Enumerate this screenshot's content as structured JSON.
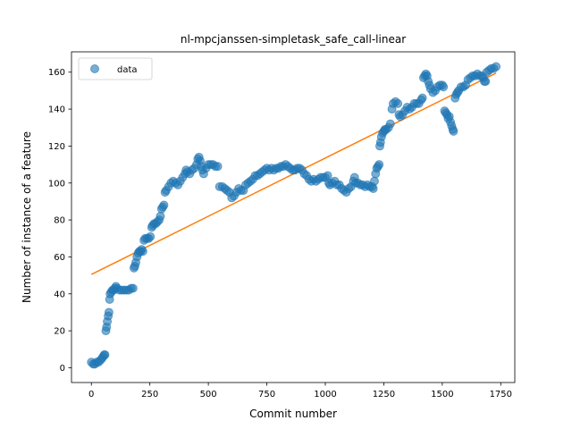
{
  "chart_data": {
    "type": "scatter",
    "title": "nl-mpcjanssen-simpletask_safe_call-linear",
    "xlabel": "Commit number",
    "ylabel": "Number of instance of a feature",
    "xlim": [
      -85,
      1810
    ],
    "ylim": [
      -8,
      171
    ],
    "xticks": [
      0,
      250,
      500,
      750,
      1000,
      1250,
      1500,
      1750
    ],
    "yticks": [
      0,
      20,
      40,
      60,
      80,
      100,
      120,
      140,
      160
    ],
    "grid": false,
    "legend_position": "upper-left",
    "colors": {
      "data": "#1f77b4",
      "fit": "#ff7f0e"
    },
    "series": [
      {
        "name": "data",
        "kind": "scatter",
        "points": [
          [
            0,
            3
          ],
          [
            8,
            2
          ],
          [
            15,
            2
          ],
          [
            22,
            3
          ],
          [
            30,
            3
          ],
          [
            38,
            4
          ],
          [
            45,
            5
          ],
          [
            50,
            6
          ],
          [
            55,
            7
          ],
          [
            58,
            7
          ],
          [
            62,
            20
          ],
          [
            65,
            22
          ],
          [
            68,
            25
          ],
          [
            72,
            28
          ],
          [
            75,
            30
          ],
          [
            78,
            37
          ],
          [
            80,
            40
          ],
          [
            85,
            41
          ],
          [
            90,
            42
          ],
          [
            95,
            42
          ],
          [
            100,
            43
          ],
          [
            105,
            44
          ],
          [
            110,
            43
          ],
          [
            120,
            42
          ],
          [
            130,
            42
          ],
          [
            140,
            42
          ],
          [
            150,
            42
          ],
          [
            160,
            42
          ],
          [
            170,
            43
          ],
          [
            178,
            43
          ],
          [
            182,
            54
          ],
          [
            186,
            55
          ],
          [
            190,
            57
          ],
          [
            195,
            60
          ],
          [
            200,
            62
          ],
          [
            205,
            63
          ],
          [
            210,
            63
          ],
          [
            215,
            64
          ],
          [
            220,
            63
          ],
          [
            225,
            69
          ],
          [
            230,
            70
          ],
          [
            238,
            70
          ],
          [
            245,
            70
          ],
          [
            252,
            71
          ],
          [
            258,
            76
          ],
          [
            262,
            77
          ],
          [
            268,
            78
          ],
          [
            275,
            78
          ],
          [
            282,
            79
          ],
          [
            290,
            80
          ],
          [
            295,
            82
          ],
          [
            300,
            86
          ],
          [
            305,
            87
          ],
          [
            310,
            88
          ],
          [
            315,
            95
          ],
          [
            320,
            96
          ],
          [
            330,
            98
          ],
          [
            340,
            100
          ],
          [
            350,
            101
          ],
          [
            360,
            100
          ],
          [
            370,
            99
          ],
          [
            380,
            101
          ],
          [
            390,
            103
          ],
          [
            400,
            105
          ],
          [
            405,
            107
          ],
          [
            410,
            106
          ],
          [
            420,
            105
          ],
          [
            430,
            107
          ],
          [
            440,
            108
          ],
          [
            450,
            110
          ],
          [
            455,
            113
          ],
          [
            460,
            114
          ],
          [
            465,
            112
          ],
          [
            470,
            109
          ],
          [
            475,
            107
          ],
          [
            480,
            105
          ],
          [
            490,
            108
          ],
          [
            500,
            110
          ],
          [
            510,
            110
          ],
          [
            520,
            110
          ],
          [
            530,
            109
          ],
          [
            540,
            109
          ],
          [
            548,
            98
          ],
          [
            560,
            98
          ],
          [
            570,
            97
          ],
          [
            580,
            96
          ],
          [
            590,
            95
          ],
          [
            600,
            92
          ],
          [
            610,
            93
          ],
          [
            620,
            95
          ],
          [
            630,
            97
          ],
          [
            640,
            96
          ],
          [
            650,
            96
          ],
          [
            660,
            99
          ],
          [
            670,
            100
          ],
          [
            680,
            101
          ],
          [
            690,
            102
          ],
          [
            700,
            104
          ],
          [
            710,
            104
          ],
          [
            720,
            105
          ],
          [
            730,
            106
          ],
          [
            740,
            107
          ],
          [
            750,
            108
          ],
          [
            760,
            107
          ],
          [
            770,
            108
          ],
          [
            780,
            107
          ],
          [
            790,
            108
          ],
          [
            800,
            108
          ],
          [
            810,
            109
          ],
          [
            820,
            109
          ],
          [
            830,
            110
          ],
          [
            840,
            109
          ],
          [
            850,
            108
          ],
          [
            860,
            107
          ],
          [
            870,
            107
          ],
          [
            880,
            108
          ],
          [
            890,
            108
          ],
          [
            900,
            107
          ],
          [
            910,
            105
          ],
          [
            920,
            104
          ],
          [
            930,
            102
          ],
          [
            940,
            101
          ],
          [
            950,
            102
          ],
          [
            960,
            101
          ],
          [
            970,
            102
          ],
          [
            980,
            103
          ],
          [
            990,
            103
          ],
          [
            1000,
            103
          ],
          [
            1010,
            104
          ],
          [
            1015,
            100
          ],
          [
            1020,
            99
          ],
          [
            1030,
            100
          ],
          [
            1040,
            101
          ],
          [
            1050,
            99
          ],
          [
            1060,
            99
          ],
          [
            1070,
            97
          ],
          [
            1080,
            96
          ],
          [
            1090,
            95
          ],
          [
            1100,
            97
          ],
          [
            1110,
            98
          ],
          [
            1120,
            101
          ],
          [
            1125,
            103
          ],
          [
            1130,
            100
          ],
          [
            1140,
            100
          ],
          [
            1150,
            99
          ],
          [
            1160,
            99
          ],
          [
            1170,
            98
          ],
          [
            1180,
            99
          ],
          [
            1190,
            98
          ],
          [
            1200,
            98
          ],
          [
            1205,
            97
          ],
          [
            1210,
            101
          ],
          [
            1215,
            105
          ],
          [
            1220,
            108
          ],
          [
            1225,
            109
          ],
          [
            1230,
            110
          ],
          [
            1233,
            120
          ],
          [
            1236,
            122
          ],
          [
            1240,
            125
          ],
          [
            1245,
            127
          ],
          [
            1250,
            128
          ],
          [
            1255,
            129
          ],
          [
            1260,
            129
          ],
          [
            1270,
            130
          ],
          [
            1278,
            132
          ],
          [
            1285,
            140
          ],
          [
            1290,
            143
          ],
          [
            1300,
            144
          ],
          [
            1310,
            143
          ],
          [
            1315,
            137
          ],
          [
            1320,
            136
          ],
          [
            1330,
            137
          ],
          [
            1340,
            139
          ],
          [
            1350,
            141
          ],
          [
            1360,
            140
          ],
          [
            1370,
            141
          ],
          [
            1380,
            143
          ],
          [
            1390,
            143
          ],
          [
            1400,
            143
          ],
          [
            1410,
            145
          ],
          [
            1415,
            146
          ],
          [
            1420,
            157
          ],
          [
            1425,
            158
          ],
          [
            1430,
            159
          ],
          [
            1435,
            158
          ],
          [
            1440,
            155
          ],
          [
            1445,
            153
          ],
          [
            1450,
            151
          ],
          [
            1460,
            149
          ],
          [
            1470,
            150
          ],
          [
            1480,
            152
          ],
          [
            1490,
            153
          ],
          [
            1500,
            153
          ],
          [
            1505,
            152
          ],
          [
            1510,
            139
          ],
          [
            1515,
            138
          ],
          [
            1520,
            137
          ],
          [
            1525,
            135
          ],
          [
            1530,
            136
          ],
          [
            1535,
            133
          ],
          [
            1540,
            131
          ],
          [
            1545,
            129
          ],
          [
            1548,
            128
          ],
          [
            1555,
            146
          ],
          [
            1560,
            148
          ],
          [
            1565,
            149
          ],
          [
            1570,
            150
          ],
          [
            1580,
            152
          ],
          [
            1590,
            152
          ],
          [
            1600,
            153
          ],
          [
            1610,
            156
          ],
          [
            1620,
            157
          ],
          [
            1630,
            158
          ],
          [
            1640,
            158
          ],
          [
            1650,
            159
          ],
          [
            1660,
            158
          ],
          [
            1670,
            158
          ],
          [
            1675,
            157
          ],
          [
            1680,
            155
          ],
          [
            1685,
            155
          ],
          [
            1690,
            160
          ],
          [
            1700,
            161
          ],
          [
            1710,
            162
          ],
          [
            1720,
            162
          ],
          [
            1730,
            163
          ]
        ]
      },
      {
        "name": "",
        "kind": "line",
        "x": [
          0,
          1730
        ],
        "y": [
          50.5,
          159.5
        ]
      }
    ],
    "legend": [
      {
        "label": "data",
        "marker": "circle"
      }
    ]
  }
}
